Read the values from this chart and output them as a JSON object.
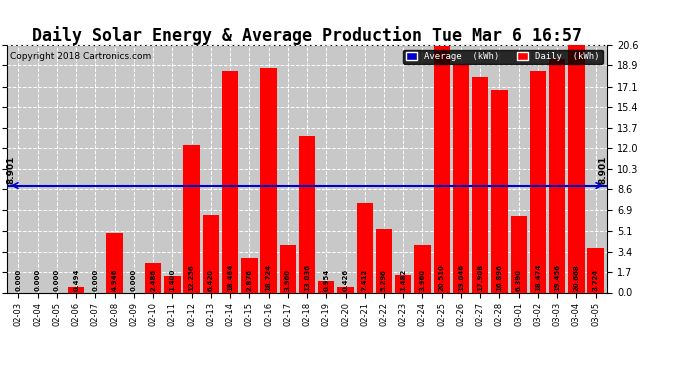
{
  "title": "Daily Solar Energy & Average Production Tue Mar 6 16:57",
  "copyright": "Copyright 2018 Cartronics.com",
  "categories": [
    "02-03",
    "02-04",
    "02-05",
    "02-06",
    "02-07",
    "02-08",
    "02-09",
    "02-10",
    "02-11",
    "02-12",
    "02-13",
    "02-14",
    "02-15",
    "02-16",
    "02-17",
    "02-18",
    "02-19",
    "02-20",
    "02-21",
    "02-22",
    "02-23",
    "02-24",
    "02-25",
    "02-26",
    "02-27",
    "02-28",
    "03-01",
    "03-02",
    "03-03",
    "03-04",
    "03-05"
  ],
  "values": [
    0.0,
    0.0,
    0.0,
    0.494,
    0.0,
    4.946,
    0.0,
    2.486,
    1.4,
    12.256,
    6.42,
    18.464,
    2.876,
    18.724,
    3.96,
    13.036,
    0.954,
    0.426,
    7.412,
    5.296,
    1.482,
    3.96,
    20.51,
    19.046,
    17.908,
    16.896,
    6.39,
    18.474,
    19.456,
    20.668,
    3.724
  ],
  "average": 8.901,
  "bar_color": "#FF0000",
  "avg_line_color": "#0000CC",
  "background_color": "#FFFFFF",
  "plot_bg_color": "#C8C8C8",
  "ylim": [
    0.0,
    20.6
  ],
  "yticks": [
    0.0,
    1.7,
    3.4,
    5.1,
    6.9,
    8.6,
    10.3,
    12.0,
    13.7,
    15.4,
    17.1,
    18.9,
    20.6
  ],
  "title_fontsize": 12,
  "avg_label": "8.901",
  "legend_avg_text": "Average  (kWh)",
  "legend_daily_text": "Daily  (kWh)"
}
